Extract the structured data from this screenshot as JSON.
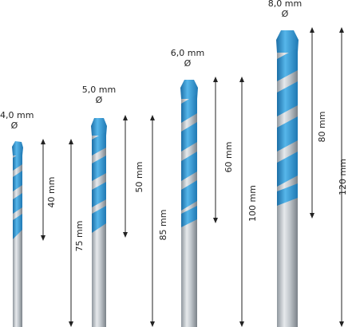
{
  "bits": [
    {
      "diameter": "4,0 mm",
      "symbol": "Ø",
      "working_length": "40 mm",
      "total_length": "75 mm"
    },
    {
      "diameter": "5,0 mm",
      "symbol": "Ø",
      "working_length": "50 mm",
      "total_length": "85 mm"
    },
    {
      "diameter": "6,0 mm",
      "symbol": "Ø",
      "working_length": "60 mm",
      "total_length": "100 mm"
    },
    {
      "diameter": "8,0 mm",
      "symbol": "Ø",
      "working_length": "80 mm",
      "total_length": "120 mm"
    }
  ],
  "colors": {
    "blue": "#3fa3dc",
    "blue_dark": "#1f6fa3",
    "steel": "#c9ced3",
    "steel_dark": "#7d858c",
    "line": "#222222"
  }
}
